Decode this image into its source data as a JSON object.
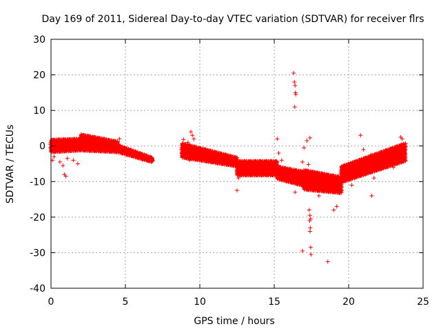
{
  "chart_data": {
    "type": "scatter",
    "title": "Day 169 of 2011, Sidereal Day-to-day VTEC variation (SDTVAR) for receiver flrs",
    "xlabel": "GPS time / hours",
    "ylabel": "SDTVAR / TECUs",
    "xlim": [
      0,
      25
    ],
    "ylim": [
      -40,
      30
    ],
    "xticks": [
      0,
      5,
      10,
      15,
      20,
      25
    ],
    "yticks": [
      -40,
      -30,
      -20,
      -10,
      0,
      10,
      20,
      30
    ],
    "grid": true,
    "marker": "+",
    "series_color": "#ff0000",
    "clusters": [
      {
        "from": 0.0,
        "to": 2.0,
        "start": [
          -1.5,
          1.5
        ],
        "end": [
          -1.0,
          1.8
        ]
      },
      {
        "from": 2.0,
        "to": 4.5,
        "start": [
          -1.0,
          3.0
        ],
        "end": [
          -1.5,
          1.0
        ]
      },
      {
        "from": 4.5,
        "to": 6.8,
        "start": [
          -1.5,
          0.0
        ],
        "end": [
          -4.3,
          -3.5
        ]
      },
      {
        "from": 8.8,
        "to": 12.5,
        "start": [
          -3.0,
          0.5
        ],
        "end": [
          -5.5,
          -3.5
        ]
      },
      {
        "from": 12.5,
        "to": 15.2,
        "start": [
          -8.0,
          -4.5
        ],
        "end": [
          -8.0,
          -4.5
        ]
      },
      {
        "from": 15.2,
        "to": 17.0,
        "start": [
          -9.0,
          -6.0
        ],
        "end": [
          -11.0,
          -7.5
        ]
      },
      {
        "from": 17.0,
        "to": 19.5,
        "start": [
          -12.0,
          -7.0
        ],
        "end": [
          -13.0,
          -9.0
        ]
      },
      {
        "from": 19.5,
        "to": 23.8,
        "start": [
          -10.0,
          -6.0
        ],
        "end": [
          -4.0,
          0.5
        ]
      }
    ],
    "points": [
      [
        0.1,
        -4
      ],
      [
        0.2,
        -3
      ],
      [
        0.6,
        -4.5
      ],
      [
        0.8,
        -5.5
      ],
      [
        0.9,
        -8
      ],
      [
        1.0,
        -8.5
      ],
      [
        1.1,
        -3.5
      ],
      [
        1.5,
        -4
      ],
      [
        1.8,
        -5
      ],
      [
        2.0,
        1
      ],
      [
        2.5,
        2.5
      ],
      [
        3.2,
        1.5
      ],
      [
        3.6,
        0.5
      ],
      [
        4.6,
        2
      ],
      [
        8.9,
        1.8
      ],
      [
        9.2,
        1
      ],
      [
        9.4,
        4
      ],
      [
        9.5,
        3
      ],
      [
        9.6,
        2
      ],
      [
        9.3,
        -4
      ],
      [
        9.0,
        -3
      ],
      [
        9.1,
        -2.5
      ],
      [
        12.5,
        -12.5
      ],
      [
        12.6,
        -9
      ],
      [
        15.2,
        2
      ],
      [
        15.3,
        -2
      ],
      [
        15.5,
        -4
      ],
      [
        16.3,
        20.5
      ],
      [
        16.35,
        18
      ],
      [
        16.4,
        17
      ],
      [
        16.42,
        15
      ],
      [
        16.45,
        14.5
      ],
      [
        16.38,
        11
      ],
      [
        16.4,
        -13
      ],
      [
        16.9,
        -4.5
      ],
      [
        17.0,
        -0.5
      ],
      [
        17.2,
        1.5
      ],
      [
        17.4,
        2.3
      ],
      [
        17.3,
        -5.2
      ],
      [
        17.35,
        -18
      ],
      [
        17.4,
        -19.5
      ],
      [
        17.45,
        -20.5
      ],
      [
        17.38,
        -21
      ],
      [
        17.42,
        -23
      ],
      [
        17.4,
        -24
      ],
      [
        17.45,
        -28.5
      ],
      [
        17.47,
        -30.5
      ],
      [
        16.9,
        -29.5
      ],
      [
        18.6,
        -32.5
      ],
      [
        17.6,
        -12
      ],
      [
        18.0,
        -14
      ],
      [
        19.0,
        -18
      ],
      [
        19.2,
        -17
      ],
      [
        20.2,
        -11
      ],
      [
        20.4,
        -8.5
      ],
      [
        21.0,
        -1
      ],
      [
        21.5,
        -2.5
      ],
      [
        21.55,
        -14
      ],
      [
        21.7,
        -9
      ],
      [
        22.0,
        -4
      ],
      [
        22.5,
        -2
      ],
      [
        23.0,
        -6
      ],
      [
        23.2,
        -3
      ],
      [
        23.5,
        2.5
      ],
      [
        23.6,
        2
      ],
      [
        23.8,
        -2
      ],
      [
        20.8,
        3
      ]
    ]
  }
}
